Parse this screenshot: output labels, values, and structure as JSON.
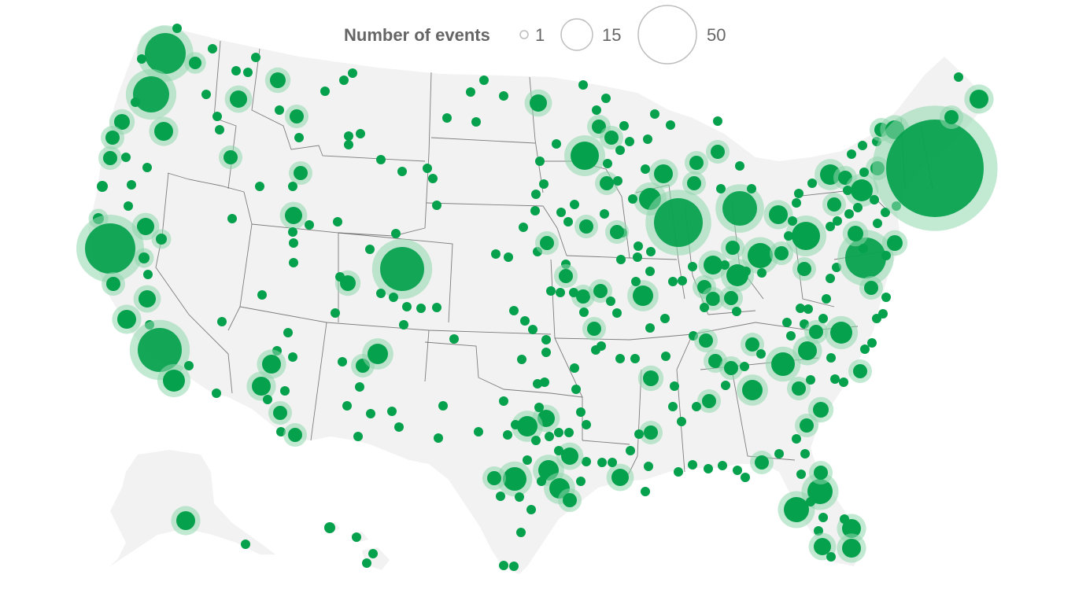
{
  "legend": {
    "title": "Number of events",
    "values": [
      "1",
      "15",
      "50"
    ],
    "outline_color": "#bdbdbd"
  },
  "colors": {
    "dot": "#05a14d",
    "halo": "#8fd7ad",
    "land": "#f2f2f2",
    "state_border": "#555555"
  },
  "marker_meaning": "event-location-dots-sized-by-number-of-events"
}
